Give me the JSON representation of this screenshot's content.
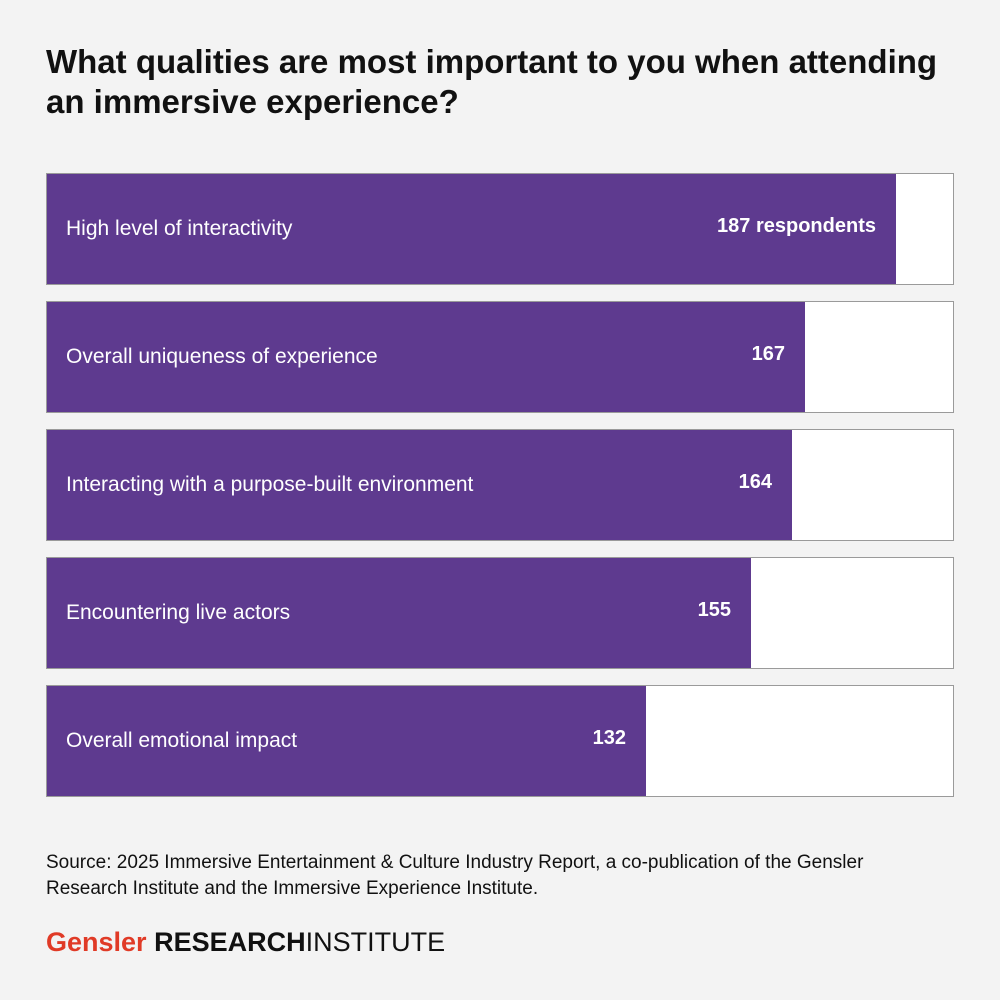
{
  "chart_data": {
    "type": "bar",
    "orientation": "horizontal",
    "title": "What qualities are most important to you when attending an immersive experience?",
    "categories": [
      "High level of interactivity",
      "Overall uniqueness of experience",
      "Interacting with a purpose-built environment",
      "Encountering live actors",
      "Overall emotional impact"
    ],
    "values": [
      187,
      167,
      164,
      155,
      132
    ],
    "value_labels": [
      "187 respondents",
      "167",
      "164",
      "155",
      "132"
    ],
    "xlim": [
      0,
      200
    ],
    "grid": false,
    "bar_color": "#5e3a8f"
  },
  "source": "Source: 2025 Immersive Entertainment & Culture Industry Report, a co-publication of the Gensler Research Institute and the Immersive Experience Institute.",
  "logo": {
    "brand": "Gensler",
    "research": "RESEARCH",
    "institute": "INSTITUTE",
    "brand_color": "#e03a26"
  }
}
